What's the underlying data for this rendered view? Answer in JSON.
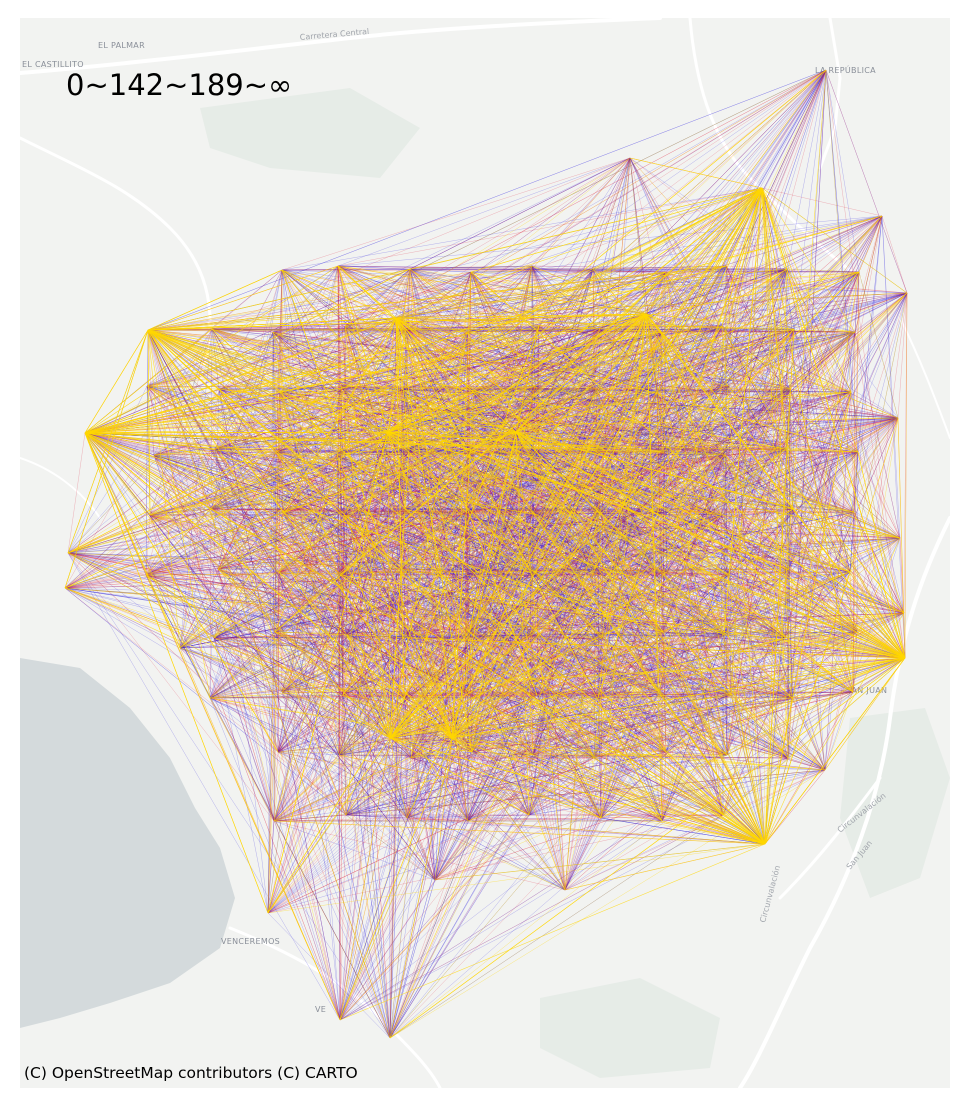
{
  "title": "0~142~189~∞",
  "attribution": "(C) OpenStreetMap contributors (C) CARTO",
  "basemap": {
    "place_labels": [
      "EL PALMAR",
      "EL CASTILLITO",
      "LA REPÚBLICA",
      "SAN JUAN",
      "VENCEREMOS",
      "VE"
    ],
    "road_labels": [
      "Carretera Central",
      "Circunvalación",
      "Circunvalación",
      "San Juan"
    ],
    "colors": {
      "land": "#f2f3f1",
      "water": "#d4dadc",
      "park": "#e4ebe5",
      "road": "#ffffff"
    }
  },
  "network": {
    "bins": [
      {
        "range": "0~142",
        "color": "#2b1ee0"
      },
      {
        "range": "142~189",
        "color": "#e0203c"
      },
      {
        "range": "189~∞",
        "color": "#ffd700"
      }
    ]
  }
}
